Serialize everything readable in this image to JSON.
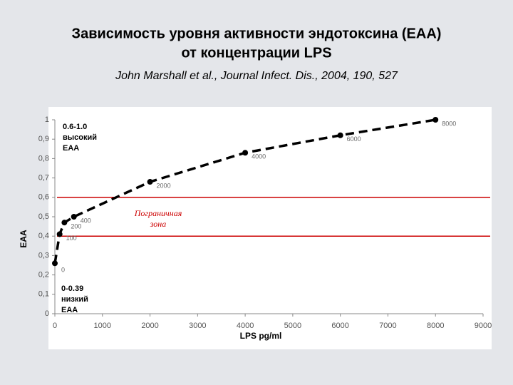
{
  "chart_data": {
    "type": "line",
    "title": [
      "Зависимость уровня активности эндотоксина (ЕАА)",
      "от концентрации LPS"
    ],
    "subtitle": "John Marshall et al., Journal Infect. Dis., 2004, 190, 527",
    "x_label": "LPS pg/ml",
    "y_label": "EAA",
    "x": [
      0,
      100,
      200,
      400,
      2000,
      4000,
      6000,
      8000
    ],
    "series": [
      {
        "color": "#000000",
        "values": [
          0.26,
          0.41,
          0.47,
          0.5,
          0.68,
          0.83,
          0.92,
          1.0
        ]
      }
    ],
    "xlim": [
      0,
      9000
    ],
    "xticks": [
      0,
      1000,
      2000,
      3000,
      4000,
      5000,
      6000,
      7000,
      8000,
      9000
    ],
    "ylim": [
      0,
      1
    ],
    "yticks": [
      0,
      {
        "value": 0.1,
        "label": "0,1"
      },
      {
        "value": 0.2,
        "label": "0,2"
      },
      {
        "value": 0.3,
        "label": "0,3"
      },
      {
        "value": 0.4,
        "label": "0,4"
      },
      {
        "value": 0.5,
        "label": "0,5"
      },
      {
        "value": 0.6,
        "label": "0,6"
      },
      {
        "value": 0.7,
        "label": "0,7"
      },
      {
        "value": 0.8,
        "label": "0,8"
      },
      {
        "value": 0.9,
        "label": "0,9"
      },
      1
    ],
    "hlines": [
      0.6,
      0.4
    ],
    "hline_color": "#cc0000",
    "annotations": [
      {
        "lines": [
          "0.6-1.0",
          "высокий",
          "EAA"
        ]
      },
      {
        "lines": [
          "0-0.39",
          "низкий",
          "EAA"
        ]
      },
      {
        "lines": [
          "Пограничная",
          "зона"
        ]
      }
    ]
  }
}
